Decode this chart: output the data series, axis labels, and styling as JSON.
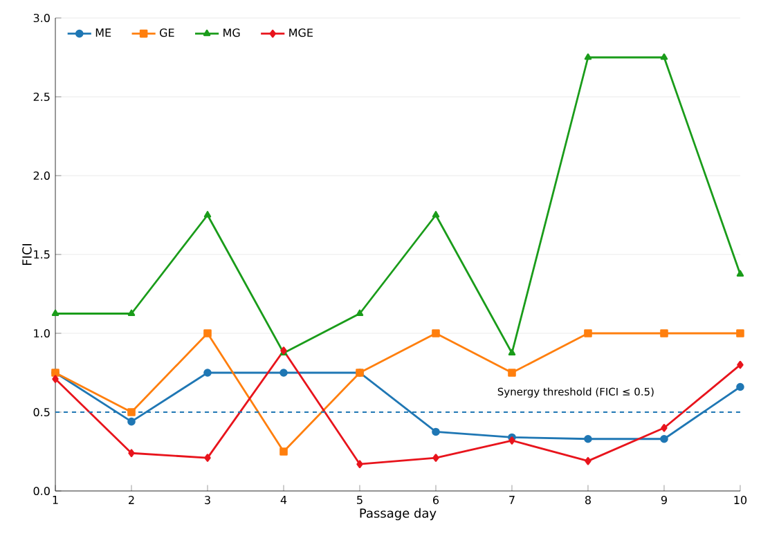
{
  "chart_data": {
    "type": "line",
    "xlabel": "Passage day",
    "ylabel": "FICI",
    "x": [
      1,
      2,
      3,
      4,
      5,
      6,
      7,
      8,
      9,
      10
    ],
    "series": [
      {
        "name": "ME",
        "color": "#1f77b4",
        "marker": "circle",
        "values": [
          0.75,
          0.44,
          0.75,
          0.75,
          0.75,
          0.375,
          0.34,
          0.33,
          0.33,
          0.66
        ]
      },
      {
        "name": "GE",
        "color": "#ff7f0e",
        "marker": "square",
        "values": [
          0.75,
          0.5,
          1.0,
          0.25,
          0.75,
          1.0,
          0.75,
          1.0,
          1.0,
          1.0
        ]
      },
      {
        "name": "MG",
        "color": "#1a9c1a",
        "marker": "triangle",
        "values": [
          1.125,
          1.125,
          1.75,
          0.875,
          1.125,
          1.75,
          0.875,
          2.75,
          2.75,
          1.375
        ]
      },
      {
        "name": "MGE",
        "color": "#e8141c",
        "marker": "diamond",
        "values": [
          0.71,
          0.24,
          0.21,
          0.89,
          0.17,
          0.21,
          0.32,
          0.19,
          0.4,
          0.8
        ]
      }
    ],
    "ref_lines": [
      {
        "axis": "y",
        "value": 0.5,
        "label": "Synergy threshold (FICI ≤ 0.5)",
        "color": "#1f77b4",
        "line_style": "dashed"
      }
    ],
    "xlim": [
      1,
      10
    ],
    "ylim": [
      0,
      3.0
    ],
    "xticks": [
      1,
      2,
      3,
      4,
      5,
      6,
      7,
      8,
      9,
      10
    ],
    "yticks": [
      {
        "value": 0,
        "label": "0.0"
      },
      0.5,
      {
        "value": 1,
        "label": "1.0"
      },
      1.5,
      {
        "value": 2,
        "label": "2.0"
      },
      2.5,
      {
        "value": 3,
        "label": "3.0"
      }
    ],
    "grid": "y",
    "legend": "top left",
    "line_style": "solid"
  }
}
